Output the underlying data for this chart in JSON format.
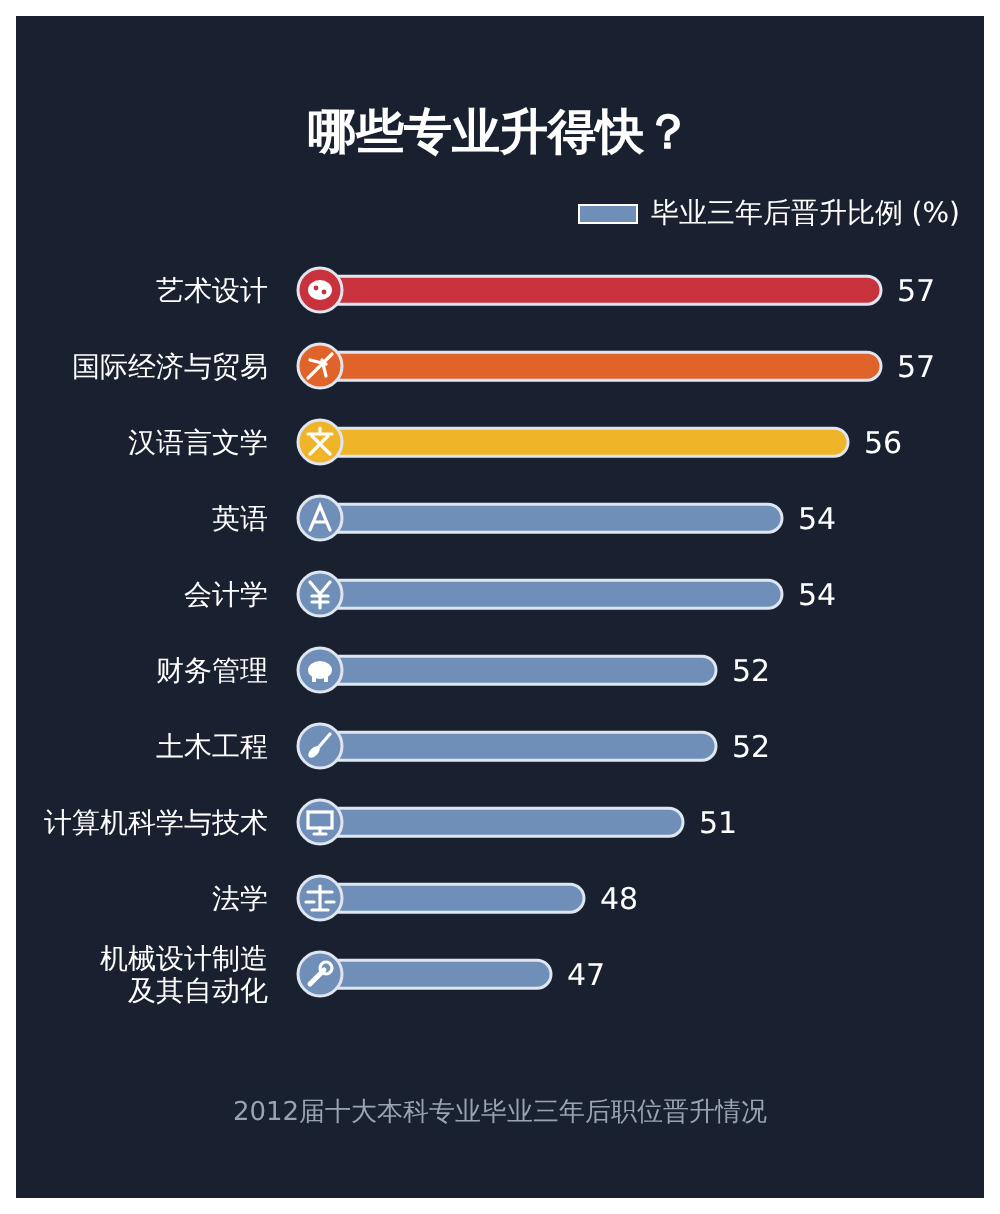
{
  "chart_data": {
    "type": "bar",
    "orientation": "horizontal",
    "title": "哪些专业升得快？",
    "categories": [
      "艺术设计",
      "国际经济与贸易",
      "汉语言文学",
      "英语",
      "会计学",
      "财务管理",
      "土木工程",
      "计算机科学与技术",
      "法学",
      "机械设计制造及其自动化"
    ],
    "series": [
      {
        "name": "毕业三年后晋升比例 (%)",
        "color": "#6f8fb8",
        "values": [
          57,
          57,
          56,
          54,
          54,
          52,
          52,
          51,
          48,
          47
        ],
        "colors": [
          "#c8323c",
          "#e0642a",
          "#f0b428",
          "#6f8fb8",
          "#6f8fb8",
          "#6f8fb8",
          "#6f8fb8",
          "#6f8fb8",
          "#6f8fb8",
          "#6f8fb8"
        ]
      }
    ],
    "xlim": [
      40,
      60
    ],
    "tick_labels": "y",
    "data_labels": true,
    "legend": "top right",
    "grid": false,
    "annotations": [
      "2012届十大本科专业毕业三年后职位晋升情况"
    ]
  }
}
